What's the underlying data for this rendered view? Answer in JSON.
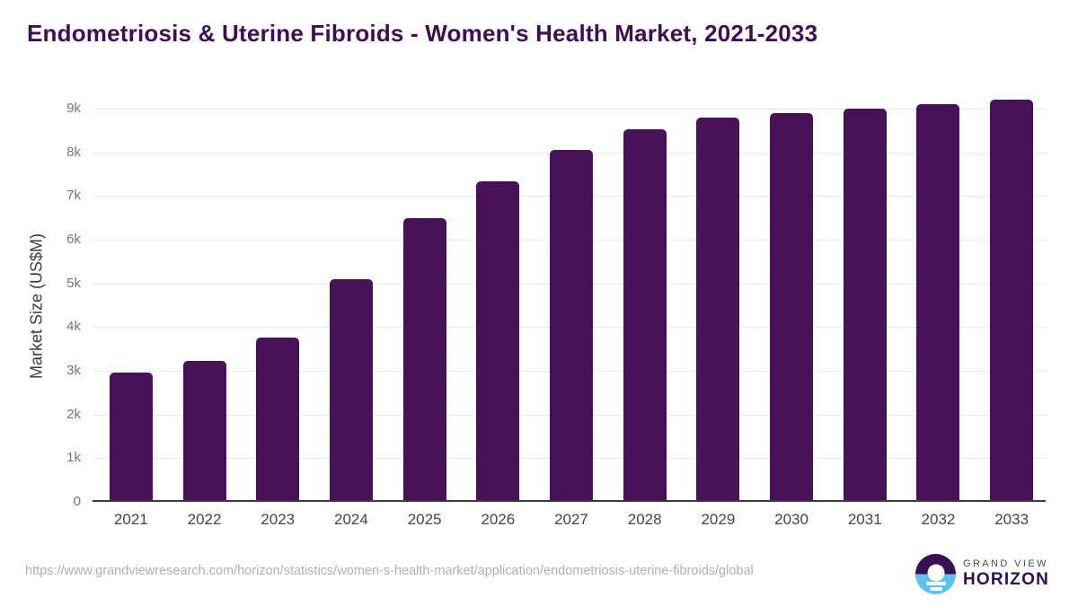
{
  "title": "Endometriosis & Uterine Fibroids - Women's Health Market, 2021-2033",
  "chart_data": {
    "type": "bar",
    "title": "Endometriosis & Uterine Fibroids - Women's Health Market, 2021-2033",
    "categories": [
      "2021",
      "2022",
      "2023",
      "2024",
      "2025",
      "2026",
      "2027",
      "2028",
      "2029",
      "2030",
      "2031",
      "2032",
      "2033"
    ],
    "values": [
      2950,
      3220,
      3760,
      5100,
      6490,
      7340,
      8050,
      8520,
      8790,
      8890,
      9000,
      9100,
      9200
    ],
    "xlabel": "",
    "ylabel": "Market Size (US$M)",
    "ylim": [
      0,
      9000
    ],
    "ytick_step": 1000,
    "ytick_labels": [
      "0",
      "1k",
      "2k",
      "3k",
      "4k",
      "5k",
      "6k",
      "7k",
      "8k",
      "9k"
    ],
    "grid": true,
    "legend_position": "none",
    "bar_color": "#481158"
  },
  "colors": {
    "bar": "#481158",
    "title_text": "#3e0e52",
    "gridline": "#e9e9e9",
    "axis_line": "#3a3a3f",
    "ytick_text": "#757575",
    "xtick_text": "#454545",
    "url_text": "#b1b1b1",
    "logo_purple": "#3a1053",
    "logo_blue": "#5cc3ee"
  },
  "footer": {
    "source_url": "https://www.grandviewresearch.com/horizon/statistics/women-s-health-market/application/endometriosis-uterine-fibroids/global",
    "logo": {
      "line1": "GRAND VIEW",
      "line2": "HORIZON"
    }
  }
}
